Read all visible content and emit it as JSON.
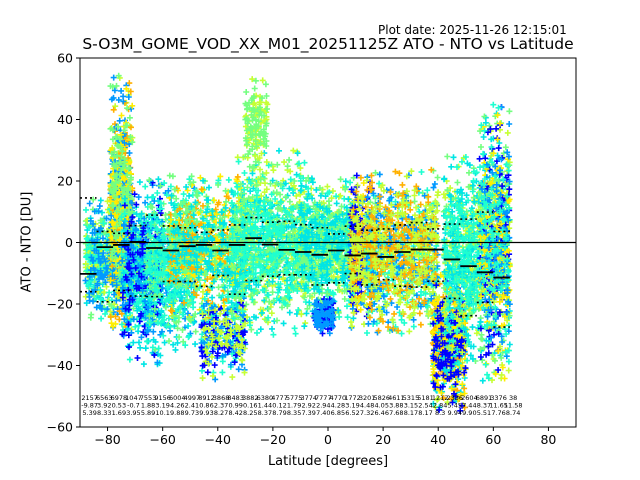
{
  "header": {
    "plot_date": "Plot date: 2025-11-26 12:15:01",
    "title": "S-O3M_GOME_VOD_XX_M01_20251125Z ATO - NTO vs Latitude"
  },
  "chart_data": {
    "type": "scatter",
    "title": "S-O3M_GOME_VOD_XX_M01_20251125Z ATO - NTO vs Latitude",
    "xlabel": "Latitude [degrees]",
    "ylabel": "ATO - NTO [DU]",
    "xlim": [
      -90,
      90
    ],
    "ylim": [
      -60,
      60
    ],
    "xticks": [
      -80,
      -60,
      -40,
      -20,
      0,
      20,
      40,
      60,
      80
    ],
    "yticks": [
      -60,
      -40,
      -20,
      0,
      20,
      40,
      60
    ],
    "zero_line": 0,
    "marker": "+",
    "point_colors": [
      "#0000ff",
      "#0099ff",
      "#00e5e5",
      "#1effd0",
      "#74ff80",
      "#c6ff34",
      "#ffee00",
      "#ffb000"
    ],
    "clusters": [
      {
        "x": [
          -88,
          -66
        ],
        "y": [
          -25,
          14
        ],
        "n": 900,
        "colors": [
          2,
          3,
          1,
          4,
          5
        ]
      },
      {
        "x": [
          -79,
          -71
        ],
        "y": [
          -30,
          55
        ],
        "n": 700,
        "colors": [
          5,
          6,
          7,
          4,
          1
        ]
      },
      {
        "x": [
          -75,
          -60
        ],
        "y": [
          -40,
          20
        ],
        "n": 500,
        "colors": [
          1,
          2,
          0,
          3
        ]
      },
      {
        "x": [
          -66,
          -48
        ],
        "y": [
          -35,
          22
        ],
        "n": 700,
        "colors": [
          3,
          2,
          1,
          4
        ]
      },
      {
        "x": [
          -58,
          -30
        ],
        "y": [
          -25,
          22
        ],
        "n": 900,
        "colors": [
          3,
          2,
          6,
          7,
          4
        ]
      },
      {
        "x": [
          -46,
          -30
        ],
        "y": [
          -45,
          -15
        ],
        "n": 300,
        "colors": [
          0,
          1,
          5,
          3
        ]
      },
      {
        "x": [
          -35,
          -8
        ],
        "y": [
          -30,
          30
        ],
        "n": 1100,
        "colors": [
          3,
          4,
          5,
          2
        ]
      },
      {
        "x": [
          -30,
          -22
        ],
        "y": [
          20,
          55
        ],
        "n": 150,
        "colors": [
          4,
          5
        ]
      },
      {
        "x": [
          -10,
          10
        ],
        "y": [
          -25,
          22
        ],
        "n": 900,
        "colors": [
          3,
          4,
          2,
          5
        ]
      },
      {
        "x": [
          -5,
          2
        ],
        "y": [
          -30,
          -18
        ],
        "n": 150,
        "colors": [
          0,
          1
        ]
      },
      {
        "x": [
          8,
          16
        ],
        "y": [
          -28,
          22
        ],
        "n": 500,
        "colors": [
          6,
          7,
          5,
          1,
          0
        ]
      },
      {
        "x": [
          14,
          40
        ],
        "y": [
          -30,
          24
        ],
        "n": 1100,
        "colors": [
          4,
          5,
          3,
          7,
          1
        ]
      },
      {
        "x": [
          38,
          50
        ],
        "y": [
          -55,
          -10
        ],
        "n": 700,
        "colors": [
          7,
          6,
          5,
          2,
          0
        ]
      },
      {
        "x": [
          42,
          56
        ],
        "y": [
          -40,
          28
        ],
        "n": 700,
        "colors": [
          4,
          3,
          2,
          5
        ]
      },
      {
        "x": [
          55,
          66
        ],
        "y": [
          -45,
          45
        ],
        "n": 900,
        "colors": [
          4,
          3,
          5,
          6,
          1,
          2,
          0
        ]
      }
    ],
    "median_segments": [
      {
        "x": [
          -90,
          -84
        ],
        "y": -10.2
      },
      {
        "x": [
          -84,
          -78
        ],
        "y": -1.5
      },
      {
        "x": [
          -78,
          -72
        ],
        "y": -0.8
      },
      {
        "x": [
          -72,
          -66
        ],
        "y": 0.2
      },
      {
        "x": [
          -66,
          -60
        ],
        "y": -1.8
      },
      {
        "x": [
          -60,
          -54
        ],
        "y": -2.6
      },
      {
        "x": [
          -54,
          -48
        ],
        "y": -1.2
      },
      {
        "x": [
          -48,
          -42
        ],
        "y": -0.8
      },
      {
        "x": [
          -42,
          -36
        ],
        "y": -2.6
      },
      {
        "x": [
          -36,
          -30
        ],
        "y": -0.8
      },
      {
        "x": [
          -30,
          -24
        ],
        "y": 1.4
      },
      {
        "x": [
          -24,
          -18
        ],
        "y": -0.7
      },
      {
        "x": [
          -18,
          -12
        ],
        "y": -2.4
      },
      {
        "x": [
          -12,
          -6
        ],
        "y": -3.1
      },
      {
        "x": [
          -6,
          0
        ],
        "y": -4.0
      },
      {
        "x": [
          0,
          6
        ],
        "y": -2.6
      },
      {
        "x": [
          6,
          12
        ],
        "y": -4.2
      },
      {
        "x": [
          12,
          18
        ],
        "y": -3.6
      },
      {
        "x": [
          18,
          24
        ],
        "y": -4.7
      },
      {
        "x": [
          24,
          30
        ],
        "y": -3.1
      },
      {
        "x": [
          30,
          36
        ],
        "y": -2.3
      },
      {
        "x": [
          36,
          42
        ],
        "y": -2.3
      },
      {
        "x": [
          42,
          48
        ],
        "y": -5.5
      },
      {
        "x": [
          48,
          54
        ],
        "y": -7.7
      },
      {
        "x": [
          54,
          60
        ],
        "y": -9.7
      },
      {
        "x": [
          60,
          66
        ],
        "y": -11.4
      }
    ],
    "spread_upper": [
      14.5,
      3.6,
      3.0,
      5.5,
      8.9,
      5.4,
      4.8,
      3.3,
      4.1,
      5.7,
      8.1,
      6.6,
      6.9,
      5.8,
      4.8,
      2.8,
      5.3,
      4.0,
      4.4,
      5.7,
      6.5,
      4.4,
      6.0,
      7.6,
      9.9,
      3.6
    ],
    "spread_lower": [
      -16.0,
      -19.3,
      -15.6,
      -17.4,
      -17.6,
      -12.7,
      -12.7,
      -14.3,
      -10.7,
      -16.8,
      -12.4,
      -11.0,
      -10.5,
      -10.5,
      -13.8,
      -13.1,
      -10.1,
      -13.8,
      -12.1,
      -14.2,
      -14.5,
      -12.6,
      -18.2,
      -23.8,
      -19.5,
      -27.5
    ],
    "bin_stats": {
      "counts": [
        "2157",
        "6563",
        "6978",
        "1047",
        "7553",
        "9156",
        "6004",
        "4997",
        "8912",
        "3868",
        "8483",
        "3882",
        "6380",
        "4777",
        "5775",
        "3774",
        "7777",
        "4770",
        "1772",
        "3201",
        "5826",
        "4611",
        "5315",
        "5181",
        "1212",
        "2336",
        "2604",
        "6891",
        "3376",
        "38"
      ],
      "means": [
        "-9.87",
        "3.92",
        "0.53",
        "-0.7",
        "1.88",
        "3.19",
        "4.26",
        "2.41",
        "0.86",
        "2.37",
        "0.99",
        "0.16",
        "1.44",
        "0.12",
        "1.79",
        "2.92",
        "2.94",
        "4.28",
        "3.19",
        "4.48",
        "4.05",
        "3.88",
        "3.15",
        "2.54",
        "2.84",
        "5.45",
        "7.44",
        "8.37",
        "11.65",
        "11.58"
      ],
      "stds": [
        "5.39",
        "8.33",
        "1.69",
        "3.95",
        "5.89",
        "10.1",
        "9.88",
        "9.73",
        "9.93",
        "8.27",
        "8.42",
        "8.25",
        "8.37",
        "8.79",
        "8.35",
        "7.39",
        "7.40",
        "6.85",
        "6.52",
        "7.32",
        "6.46",
        "7.68",
        "8.17",
        "8.17",
        "8.3",
        "9.94",
        "9.90",
        "5.51",
        "7.76",
        "8.74"
      ]
    }
  }
}
